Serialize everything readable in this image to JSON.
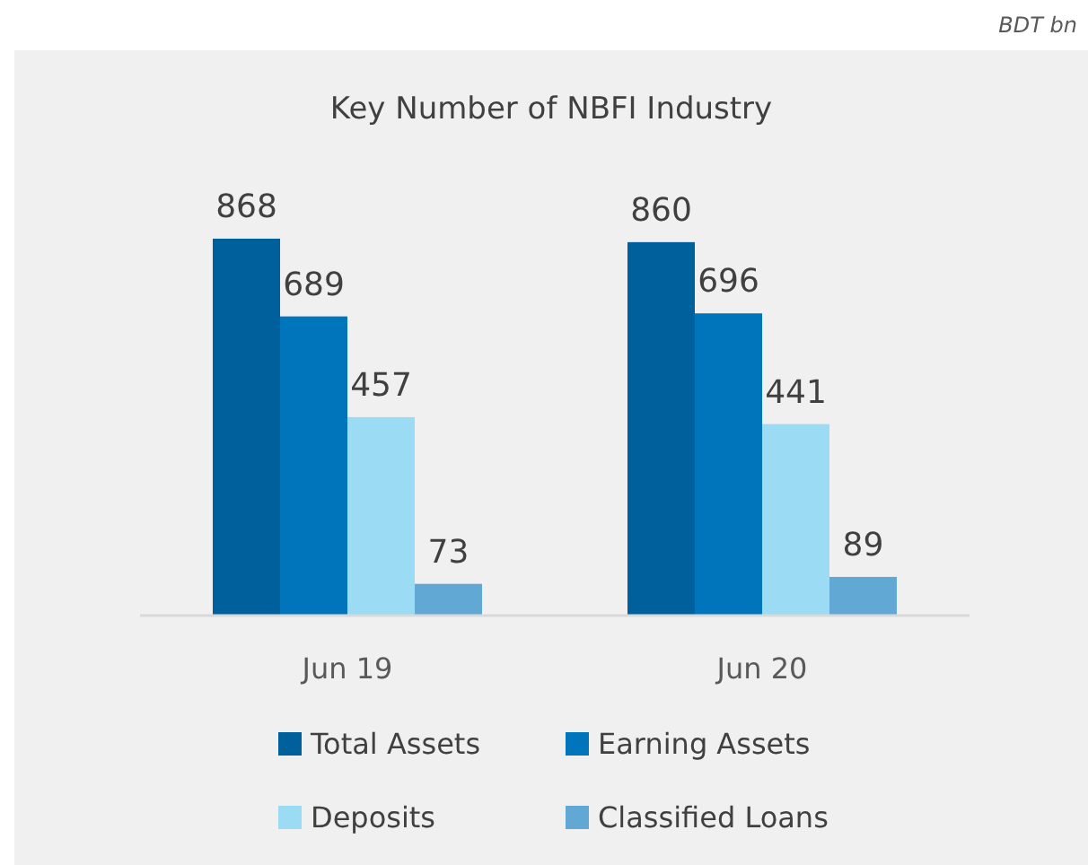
{
  "chart_data": {
    "type": "bar",
    "title": "Key Number of NBFI Industry",
    "annotations": [
      "BDT bn"
    ],
    "categories": [
      "Jun 19",
      "Jun 20"
    ],
    "series": [
      {
        "name": "Total Assets",
        "color": "#00609c",
        "values": [
          868,
          860
        ]
      },
      {
        "name": "Earning Assets",
        "color": "#0075bb",
        "values": [
          689,
          696
        ]
      },
      {
        "name": "Deposits",
        "color": "#9bdbf3",
        "values": [
          457,
          441
        ]
      },
      {
        "name": "Classified Loans",
        "color": "#62a8d4",
        "values": [
          73,
          89
        ]
      }
    ],
    "data_labels": true,
    "legend": "bottom"
  }
}
